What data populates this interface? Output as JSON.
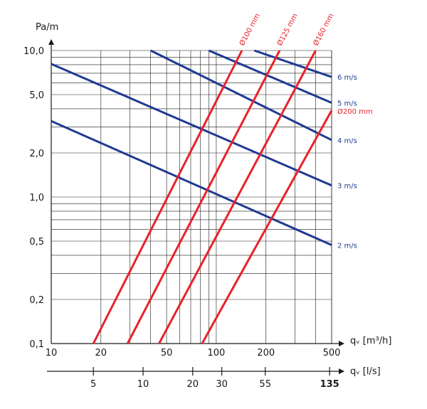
{
  "chart_data": {
    "type": "line",
    "scale": "log-log",
    "y_axis_label": "Pa/m",
    "x_axis_label": "qᵥ [m³/h]",
    "x2_axis_label": "qᵥ [l/s]",
    "ylim": [
      0.1,
      10
    ],
    "xlim": [
      10,
      500
    ],
    "y_ticks": [
      {
        "value": 0.1,
        "label": "0,1"
      },
      {
        "value": 0.2,
        "label": "0,2"
      },
      {
        "value": 0.5,
        "label": "0,5"
      },
      {
        "value": 1,
        "label": "1,0"
      },
      {
        "value": 2,
        "label": "2,0"
      },
      {
        "value": 5,
        "label": "5,0"
      },
      {
        "value": 10,
        "label": "10,0"
      }
    ],
    "x_ticks": [
      {
        "value": 10,
        "label": "10"
      },
      {
        "value": 20,
        "label": "20"
      },
      {
        "value": 50,
        "label": "50"
      },
      {
        "value": 100,
        "label": "100"
      },
      {
        "value": 200,
        "label": "200"
      },
      {
        "value": 500,
        "label": "500"
      }
    ],
    "x2_ticks": [
      {
        "value": 5,
        "label": "5"
      },
      {
        "value": 10,
        "label": "10"
      },
      {
        "value": 20,
        "label": "20"
      },
      {
        "value": 30,
        "label": "30"
      },
      {
        "value": 55,
        "label": "55"
      },
      {
        "value": 135,
        "label": "135"
      }
    ],
    "grid": true,
    "velocity_series": [
      {
        "name": "2 m/s",
        "x": [
          10,
          500
        ],
        "y": [
          3.3,
          0.47
        ]
      },
      {
        "name": "3 m/s",
        "x": [
          10,
          500
        ],
        "y": [
          8.1,
          1.2
        ]
      },
      {
        "name": "4 m/s",
        "x": [
          40,
          500
        ],
        "y": [
          10,
          2.45
        ]
      },
      {
        "name": "5 m/s",
        "x": [
          90,
          500
        ],
        "y": [
          10,
          4.4
        ]
      },
      {
        "name": "6 m/s",
        "x": [
          170,
          500
        ],
        "y": [
          10,
          6.6
        ]
      }
    ],
    "diameter_series": [
      {
        "name": "Ø100 mm",
        "x": [
          18,
          143
        ],
        "y": [
          0.1,
          10
        ]
      },
      {
        "name": "Ø125 mm",
        "x": [
          29,
          242
        ],
        "y": [
          0.1,
          10
        ]
      },
      {
        "name": "Ø160 mm",
        "x": [
          45,
          400
        ],
        "y": [
          0.1,
          10
        ]
      },
      {
        "name": "Ø200 mm",
        "x": [
          82,
          500
        ],
        "y": [
          0.1,
          3.9
        ]
      }
    ],
    "colors": {
      "velocity": "#1f3a93",
      "diameter": "#e8222b",
      "grid": "#1a1a1a"
    }
  }
}
